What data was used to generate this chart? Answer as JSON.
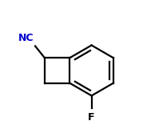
{
  "background_color": "#ffffff",
  "bond_color": "#000000",
  "nc_color": "#0000cd",
  "f_color": "#000000",
  "nc_label": "NC",
  "f_label": "F",
  "figsize": [
    1.79,
    1.71
  ],
  "dpi": 100
}
